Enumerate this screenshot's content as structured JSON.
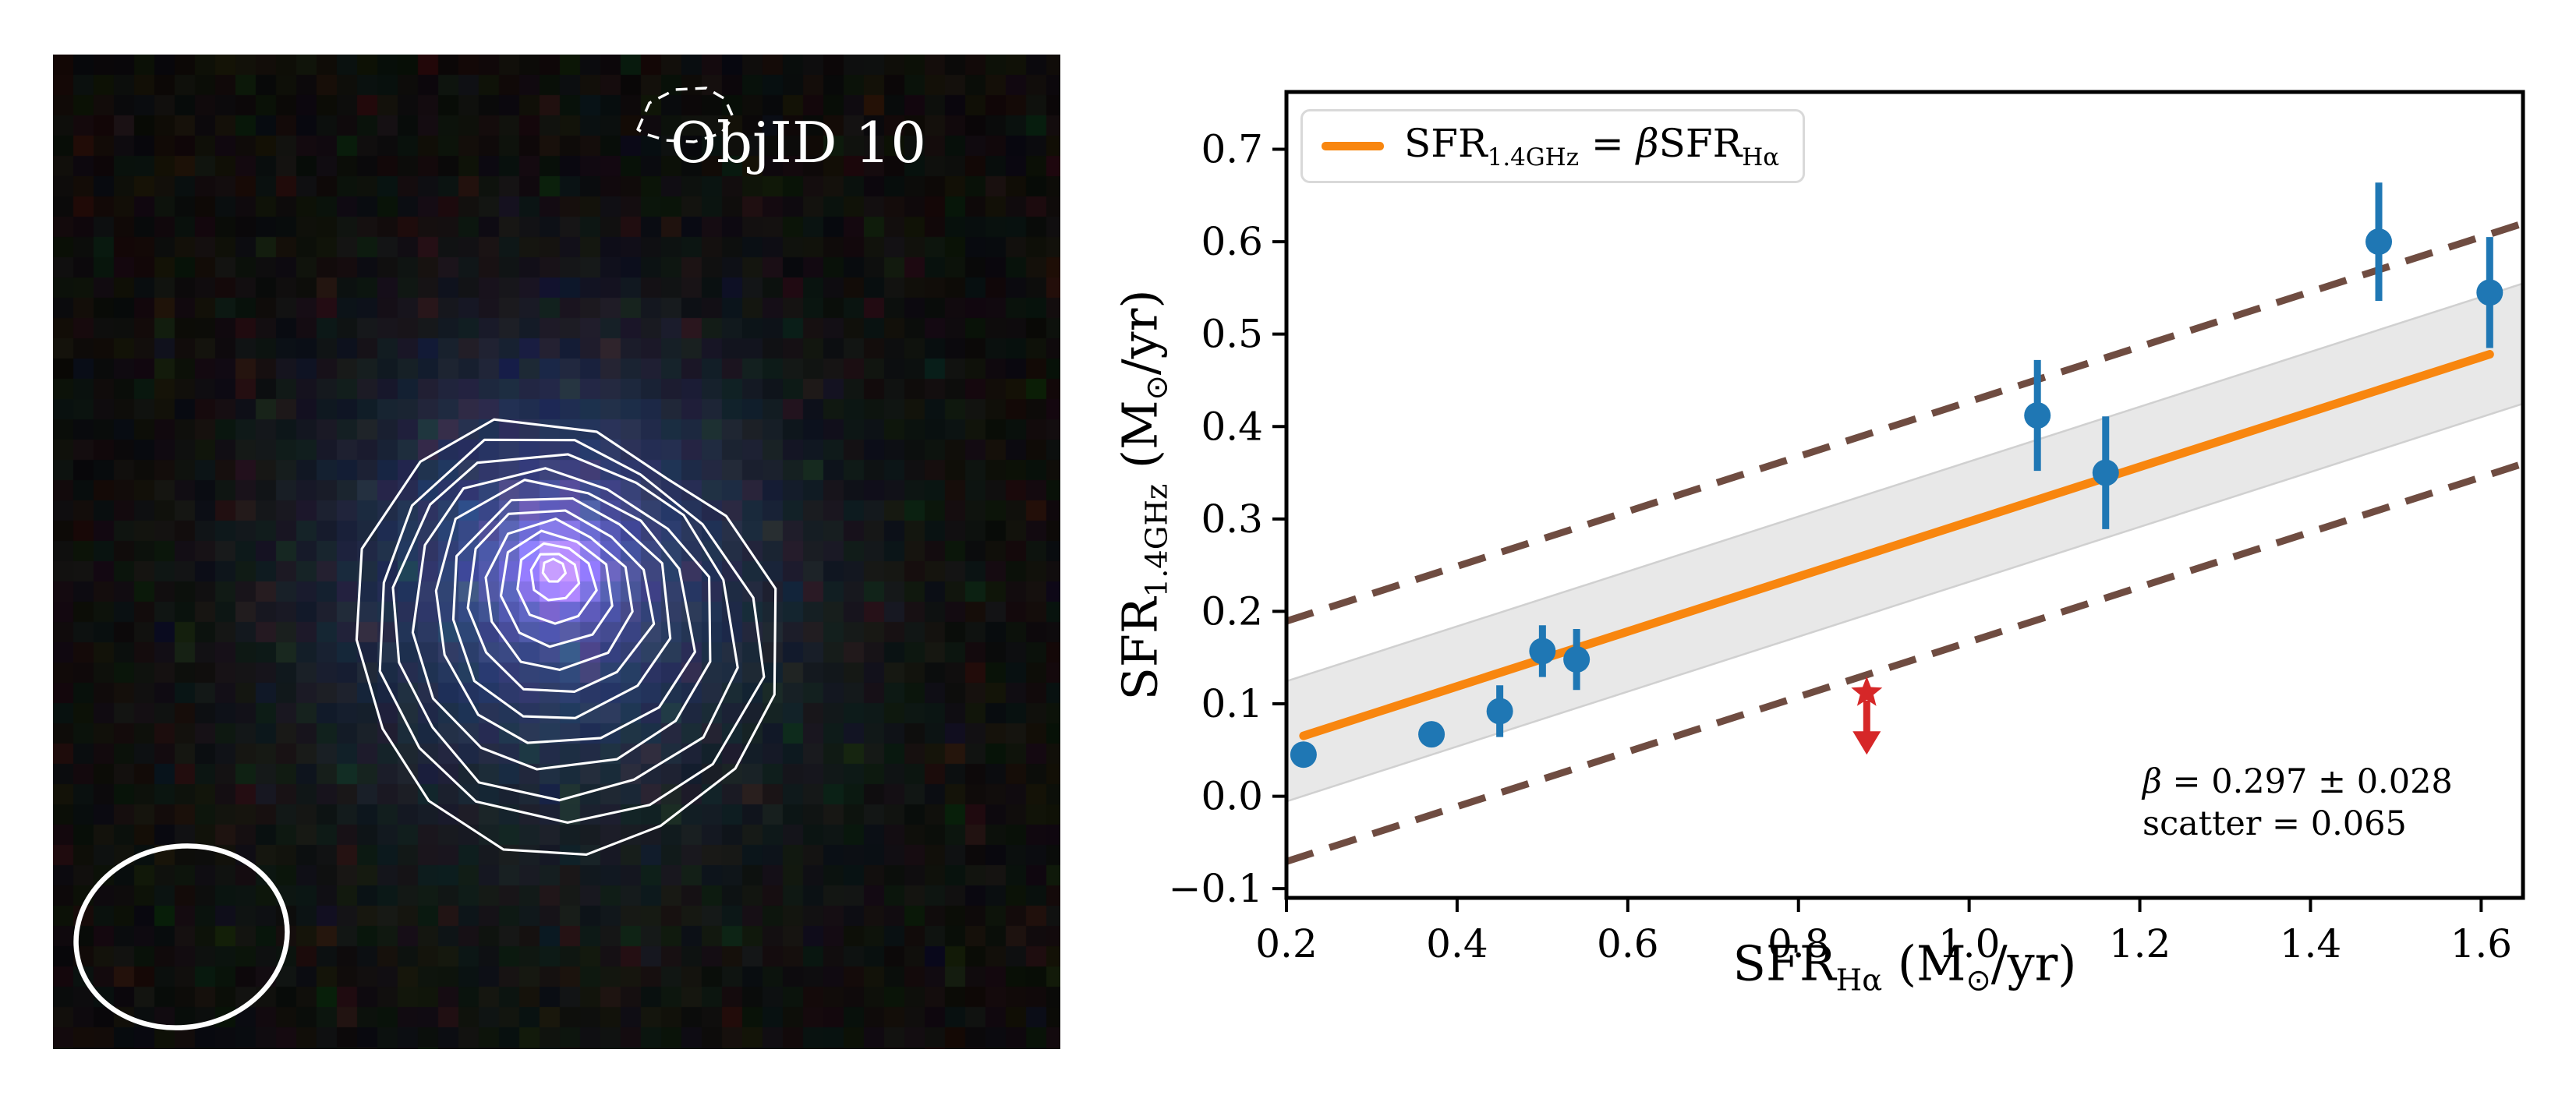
{
  "figure": {
    "background": "#ffffff"
  },
  "left_panel": {
    "object_label": "ObjID 10",
    "n_contour_levels": 12,
    "contour_color": "#ffffff",
    "dashed_contour_color": "#ffffff",
    "beam_color": "#ffffff",
    "background": "#0a0807",
    "galaxy_palette": {
      "core": "#cc90ff",
      "mid_blue": "#2c44a0",
      "halo": "#27406e",
      "teal_tinge": "#1e3a34"
    }
  },
  "chart_data": {
    "type": "scatter",
    "title": "",
    "xlabel": "SFR_Ha (M_sun/yr)",
    "ylabel": "SFR_1.4GHz (M_sun/yr)",
    "xlabel_parts": [
      {
        "t": "SFR"
      },
      {
        "s": "Hα"
      },
      {
        "t": " (M"
      },
      {
        "o": "⊙"
      },
      {
        "t": "/yr)"
      }
    ],
    "ylabel_parts": [
      {
        "t": "SFR"
      },
      {
        "s": "1.4GHz"
      },
      {
        "t": " (M"
      },
      {
        "o": "⊙"
      },
      {
        "t": "/yr)"
      }
    ],
    "legend_position": "upper left",
    "legend_label": "SFR_1.4GHz = beta * SFR_Ha",
    "legend_label_parts": [
      {
        "t": "SFR"
      },
      {
        "s": "1.4GHz"
      },
      {
        "t": " = "
      },
      {
        "i": "β"
      },
      {
        "t": "SFR"
      },
      {
        "s": "Hα"
      }
    ],
    "grid": false,
    "xlim": [
      0.2,
      1.649
    ],
    "ylim": [
      -0.11,
      0.762
    ],
    "xticks": [
      0.2,
      0.4,
      0.6,
      0.8,
      1.0,
      1.2,
      1.4,
      1.6
    ],
    "yticks": [
      -0.1,
      0.0,
      0.1,
      0.2,
      0.3,
      0.4,
      0.5,
      0.6,
      0.7
    ],
    "points": [
      {
        "x": 0.22,
        "y": 0.045,
        "yerr": null
      },
      {
        "x": 0.37,
        "y": 0.067,
        "yerr": null
      },
      {
        "x": 0.45,
        "y": 0.092,
        "yerr": 0.028
      },
      {
        "x": 0.5,
        "y": 0.157,
        "yerr": 0.028
      },
      {
        "x": 0.54,
        "y": 0.148,
        "yerr": 0.033
      },
      {
        "x": 1.08,
        "y": 0.412,
        "yerr": 0.06
      },
      {
        "x": 1.16,
        "y": 0.35,
        "yerr": 0.061
      },
      {
        "x": 1.48,
        "y": 0.6,
        "yerr": 0.064
      },
      {
        "x": 1.61,
        "y": 0.545,
        "yerr": 0.06
      }
    ],
    "upper_limit": {
      "x": 0.88,
      "y": 0.112,
      "arrow_tip_y": 0.045
    },
    "fit_line": {
      "slope": 0.297,
      "intercept": 0.0,
      "x_start": 0.22,
      "x_end": 1.61
    },
    "scatter_band_halfwidth": 0.065,
    "dashed_band_halfwidth": 0.13,
    "annotation": {
      "line1": "β = 0.297 ± 0.028",
      "line1_parts": [
        {
          "i": "β"
        },
        {
          "t": " = 0.297 ± 0.028"
        }
      ],
      "line2": "scatter = 0.065"
    },
    "colors": {
      "point": "#1f77b4",
      "fit": "#f8860f",
      "band_fill": "#e8e8e8",
      "band_edge": "#d0d0d0",
      "dashed": "#6f4c41",
      "limit": "#d62728",
      "spine": "#000000",
      "tick_label": "#000000"
    }
  }
}
